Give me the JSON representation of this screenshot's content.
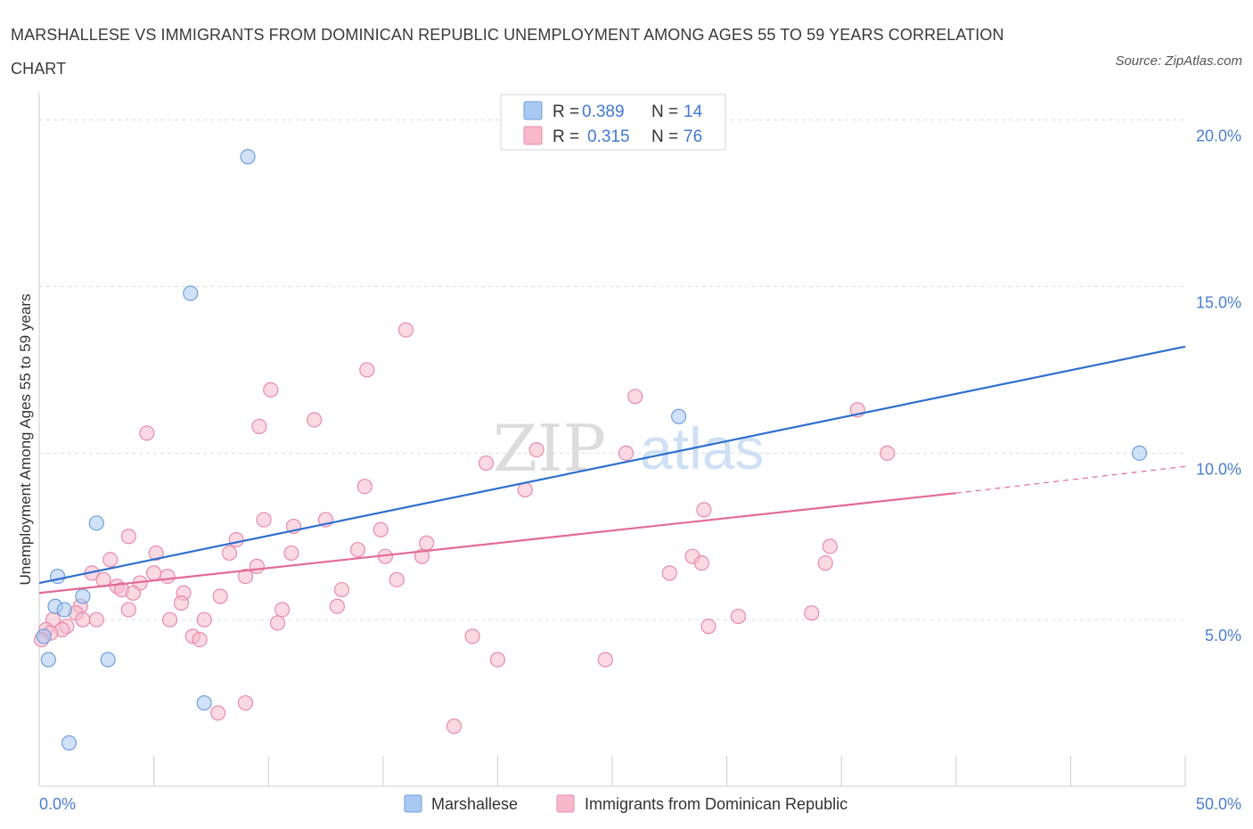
{
  "header": {
    "title": "MARSHALLESE VS IMMIGRANTS FROM DOMINICAN REPUBLIC UNEMPLOYMENT AMONG AGES 55 TO 59 YEARS CORRELATION CHART",
    "source": "Source: ZipAtlas.com"
  },
  "watermark": {
    "zip": "ZIP",
    "atlas": "atlas"
  },
  "colors": {
    "series1_fill": "#a9c8f2",
    "series1_stroke": "#6f9fde",
    "series1_line": "#2f6fcf",
    "series2_fill": "#f6b9cc",
    "series2_stroke": "#e98aa9",
    "series2_line": "#e36b95",
    "axis_label": "#4a7fd0",
    "grid": "#dddddd"
  },
  "legend": {
    "r_label": "R =",
    "n_label": "N =",
    "items": [
      {
        "r": "0.389",
        "n": "14"
      },
      {
        "r": "0.315",
        "n": "76"
      }
    ]
  },
  "chart_data": {
    "type": "scatter",
    "title": "MARSHALLESE VS IMMIGRANTS FROM DOMINICAN REPUBLIC UNEMPLOYMENT AMONG AGES 55 TO 59 YEARS CORRELATION CHART",
    "xlabel": "",
    "ylabel": "Unemployment Among Ages 55 to 59 years",
    "xlim": [
      0,
      50
    ],
    "ylim": [
      0,
      20.5
    ],
    "x_tick_labels": [
      "0.0%",
      "50.0%"
    ],
    "y_ticks": [
      5,
      10,
      15,
      20
    ],
    "y_tick_labels": [
      "5.0%",
      "10.0%",
      "15.0%",
      "20.0%"
    ],
    "grid": true,
    "legend_position": "bottom",
    "series": [
      {
        "name": "Marshallese",
        "r": 0.389,
        "n": 14,
        "trend": {
          "x0": 0,
          "y0": 6.1,
          "x1": 50,
          "y1": 13.2
        },
        "points": [
          [
            9.1,
            18.9
          ],
          [
            6.6,
            14.8
          ],
          [
            27.9,
            11.1
          ],
          [
            48.0,
            10.0
          ],
          [
            2.5,
            7.9
          ],
          [
            0.8,
            6.3
          ],
          [
            1.9,
            5.7
          ],
          [
            0.7,
            5.4
          ],
          [
            1.1,
            5.3
          ],
          [
            0.2,
            4.5
          ],
          [
            0.4,
            3.8
          ],
          [
            3.0,
            3.8
          ],
          [
            7.2,
            2.5
          ],
          [
            1.3,
            1.3
          ]
        ]
      },
      {
        "name": "Immigrants from Dominican Republic",
        "r": 0.315,
        "n": 76,
        "trend": {
          "x0": 0,
          "y0": 5.8,
          "x1": 40,
          "y1": 8.8
        },
        "trend_dashed": {
          "x0": 40,
          "y0": 8.8,
          "x1": 50,
          "y1": 9.6
        },
        "points": [
          [
            16.0,
            13.7
          ],
          [
            14.3,
            12.5
          ],
          [
            26.0,
            11.7
          ],
          [
            35.7,
            11.3
          ],
          [
            10.1,
            11.9
          ],
          [
            12.0,
            11.0
          ],
          [
            9.6,
            10.8
          ],
          [
            4.7,
            10.6
          ],
          [
            21.7,
            10.1
          ],
          [
            25.6,
            10.0
          ],
          [
            37.0,
            10.0
          ],
          [
            19.5,
            9.7
          ],
          [
            14.2,
            9.0
          ],
          [
            21.2,
            8.9
          ],
          [
            29.0,
            8.3
          ],
          [
            9.8,
            8.0
          ],
          [
            12.5,
            8.0
          ],
          [
            11.1,
            7.8
          ],
          [
            14.9,
            7.7
          ],
          [
            3.9,
            7.5
          ],
          [
            8.6,
            7.4
          ],
          [
            16.9,
            7.3
          ],
          [
            34.5,
            7.2
          ],
          [
            13.9,
            7.1
          ],
          [
            5.1,
            7.0
          ],
          [
            8.3,
            7.0
          ],
          [
            11.0,
            7.0
          ],
          [
            15.1,
            6.9
          ],
          [
            16.7,
            6.9
          ],
          [
            28.5,
            6.9
          ],
          [
            3.1,
            6.8
          ],
          [
            28.9,
            6.7
          ],
          [
            34.3,
            6.7
          ],
          [
            9.5,
            6.6
          ],
          [
            27.5,
            6.4
          ],
          [
            2.3,
            6.4
          ],
          [
            5.0,
            6.4
          ],
          [
            5.6,
            6.3
          ],
          [
            9.0,
            6.3
          ],
          [
            2.8,
            6.2
          ],
          [
            4.4,
            6.1
          ],
          [
            3.4,
            6.0
          ],
          [
            3.6,
            5.9
          ],
          [
            13.2,
            5.9
          ],
          [
            4.1,
            5.8
          ],
          [
            6.3,
            5.8
          ],
          [
            7.9,
            5.7
          ],
          [
            6.2,
            5.5
          ],
          [
            13.0,
            5.4
          ],
          [
            1.8,
            5.4
          ],
          [
            10.6,
            5.3
          ],
          [
            1.6,
            5.2
          ],
          [
            33.7,
            5.2
          ],
          [
            30.5,
            5.1
          ],
          [
            1.9,
            5.0
          ],
          [
            5.7,
            5.0
          ],
          [
            7.2,
            5.0
          ],
          [
            2.5,
            5.0
          ],
          [
            0.6,
            5.0
          ],
          [
            10.4,
            4.9
          ],
          [
            1.2,
            4.8
          ],
          [
            1.0,
            4.7
          ],
          [
            29.2,
            4.8
          ],
          [
            0.3,
            4.7
          ],
          [
            0.5,
            4.6
          ],
          [
            6.7,
            4.5
          ],
          [
            7.0,
            4.4
          ],
          [
            0.1,
            4.4
          ],
          [
            18.9,
            4.5
          ],
          [
            20.0,
            3.8
          ],
          [
            24.7,
            3.8
          ],
          [
            9.0,
            2.5
          ],
          [
            7.8,
            2.2
          ],
          [
            18.1,
            1.8
          ],
          [
            3.9,
            5.3
          ],
          [
            15.6,
            6.2
          ]
        ]
      }
    ]
  },
  "bottom_legend": {
    "items": [
      "Marshallese",
      "Immigrants from Dominican Republic"
    ]
  }
}
